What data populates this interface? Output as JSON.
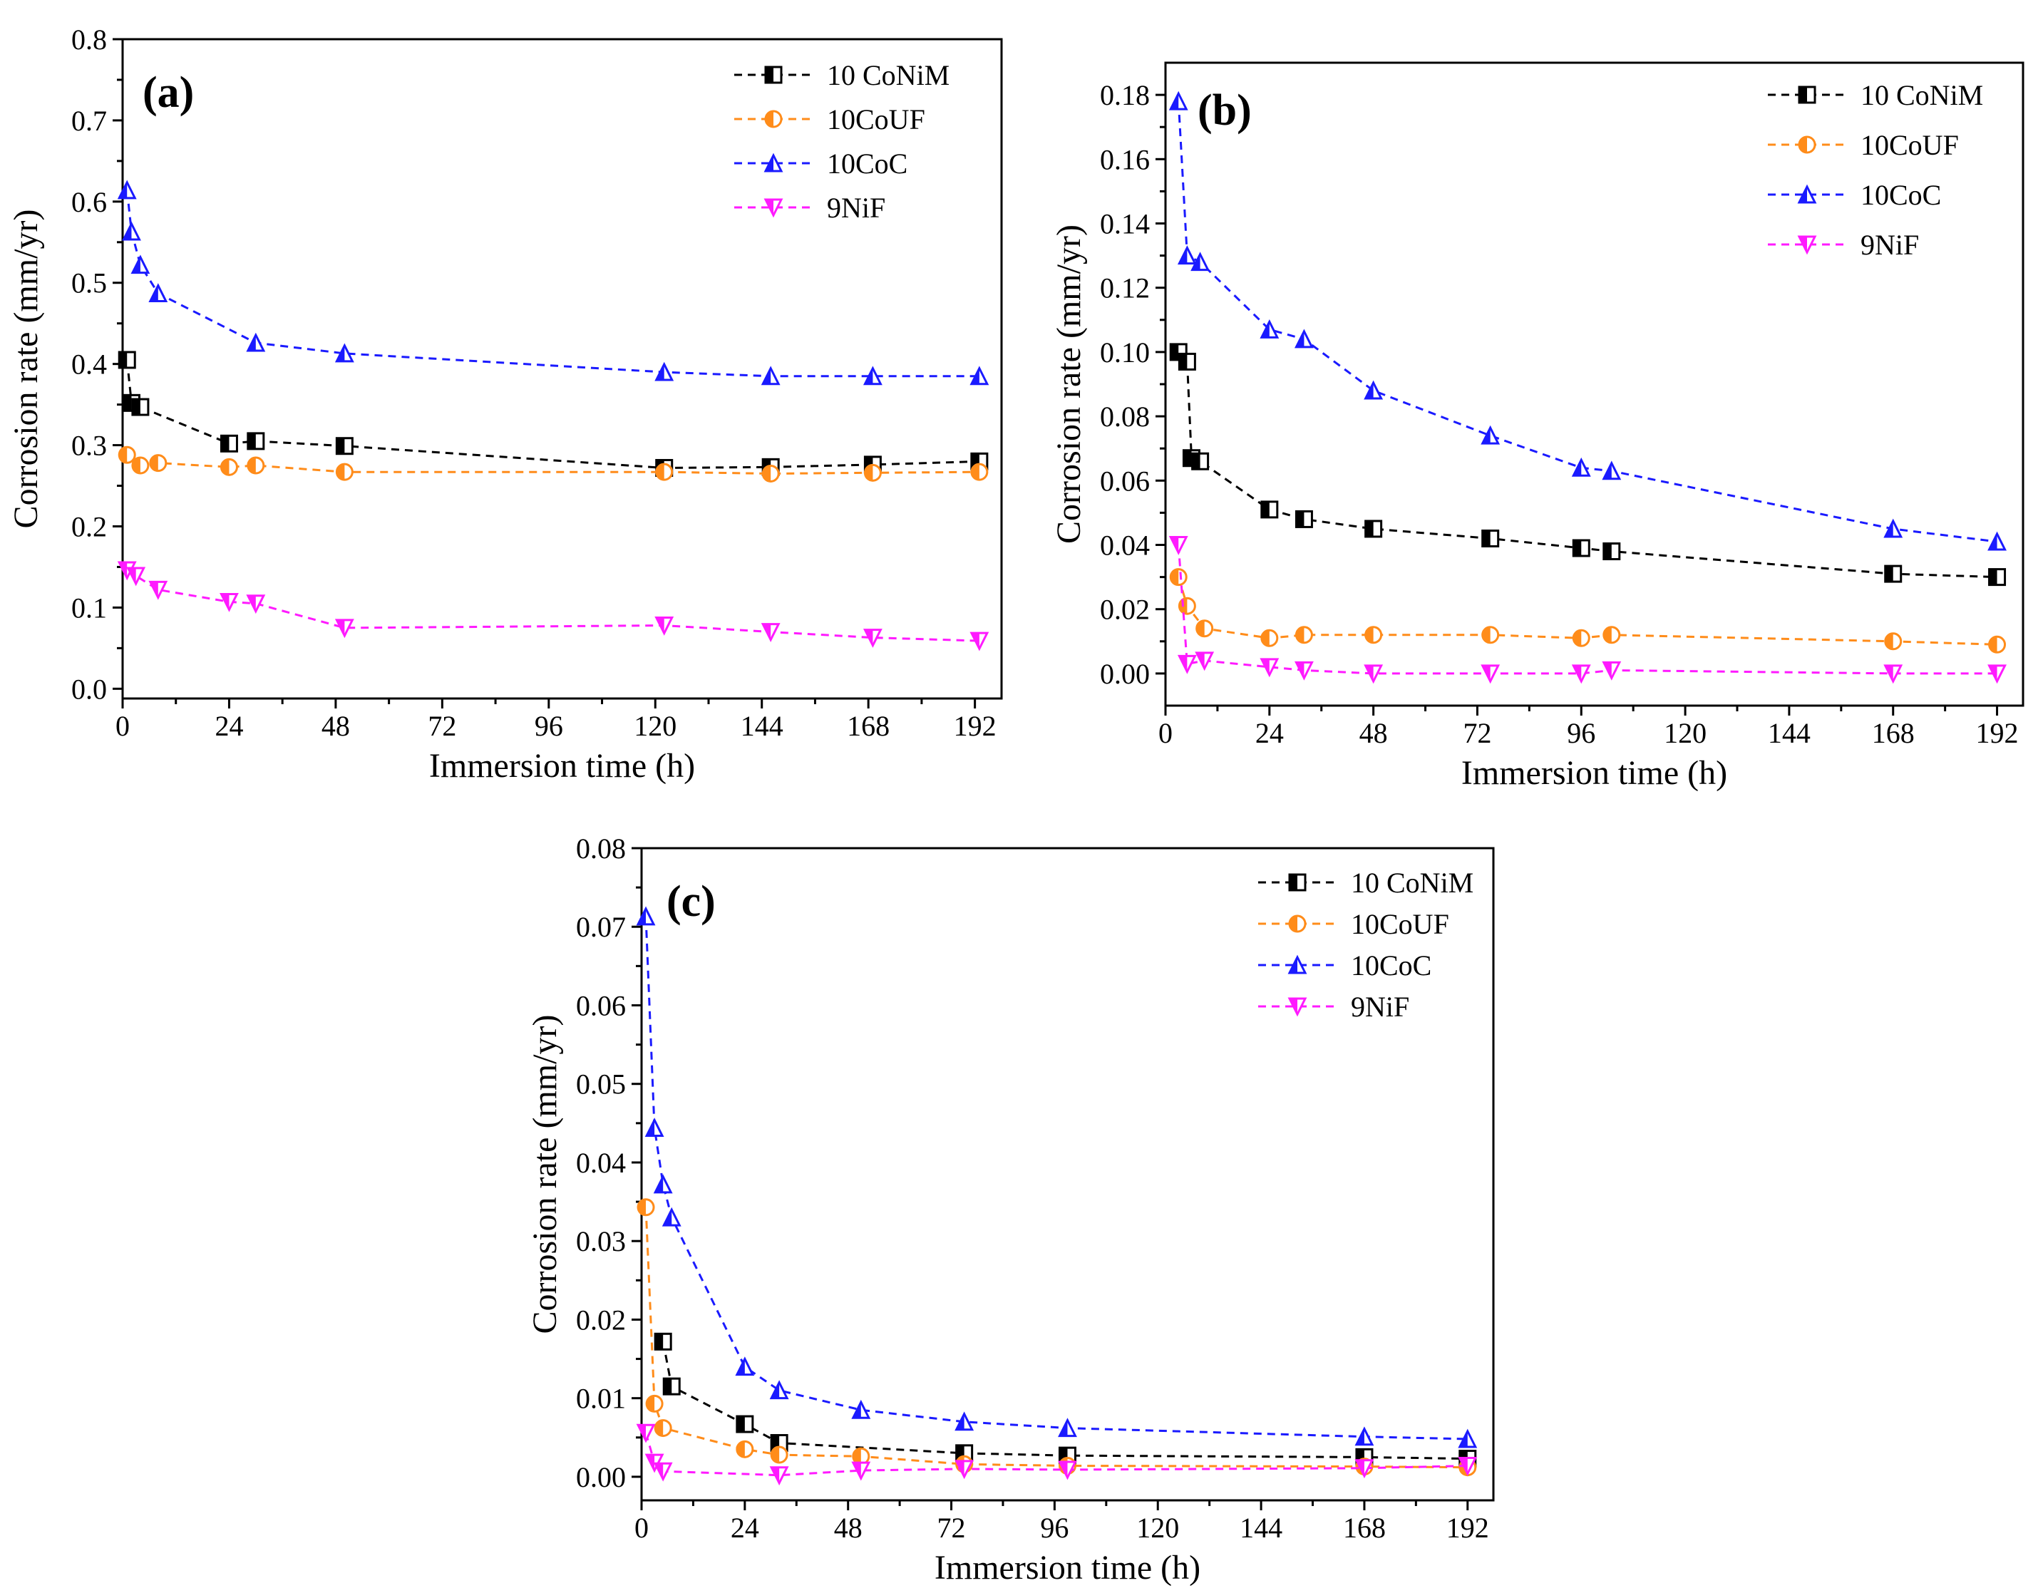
{
  "chart_data": [
    {
      "type": "line",
      "panel_label": "(a)",
      "xlabel": "Immersion time (h)",
      "ylabel": "Corrosion rate (mm/yr)",
      "xlim": [
        0,
        198
      ],
      "ylim": [
        -0.012,
        0.8
      ],
      "xticks": [
        0,
        24,
        48,
        72,
        96,
        120,
        144,
        168,
        192
      ],
      "xtick_labels": [
        "0",
        "24",
        "48",
        "72",
        "96",
        "120",
        "144",
        "168",
        "192"
      ],
      "yticks": [
        0,
        0.1,
        0.2,
        0.3,
        0.4,
        0.5,
        0.6,
        0.7,
        0.8
      ],
      "ytick_labels": [
        "0.0",
        "0.1",
        "0.2",
        "0.3",
        "0.4",
        "0.5",
        "0.6",
        "0.7",
        "0.8"
      ],
      "legend_position": "top-right",
      "series": [
        {
          "name": "10 CoNiM",
          "color": "#000000",
          "marker": "square-half",
          "x": [
            1,
            2,
            4,
            24,
            30,
            50,
            122,
            146,
            169,
            193
          ],
          "y": [
            0.405,
            0.352,
            0.347,
            0.302,
            0.305,
            0.299,
            0.272,
            0.273,
            0.276,
            0.28
          ]
        },
        {
          "name": "10CoUF",
          "color": "#ff8c1a",
          "marker": "circle-half",
          "x": [
            1,
            4,
            8,
            24,
            30,
            50,
            122,
            146,
            169,
            193
          ],
          "y": [
            0.288,
            0.275,
            0.278,
            0.273,
            0.275,
            0.267,
            0.267,
            0.265,
            0.266,
            0.267
          ]
        },
        {
          "name": "10CoC",
          "color": "#1a1aff",
          "marker": "triangle-up-half",
          "x": [
            1,
            2,
            4,
            8,
            30,
            50,
            122,
            146,
            169,
            193
          ],
          "y": [
            0.614,
            0.563,
            0.522,
            0.487,
            0.426,
            0.413,
            0.39,
            0.385,
            0.385,
            0.385
          ]
        },
        {
          "name": "9NiF",
          "color": "#ff1aff",
          "marker": "triangle-down-half",
          "x": [
            1,
            3,
            8,
            24,
            30,
            50,
            122,
            146,
            169,
            193
          ],
          "y": [
            0.146,
            0.139,
            0.122,
            0.107,
            0.105,
            0.075,
            0.078,
            0.07,
            0.063,
            0.059
          ]
        }
      ]
    },
    {
      "type": "line",
      "panel_label": "(b)",
      "xlabel": "Immersion time (h)",
      "ylabel": "Corrosion rate (mm/yr)",
      "xlim": [
        0,
        198
      ],
      "ylim": [
        -0.01,
        0.19
      ],
      "xticks": [
        0,
        24,
        48,
        72,
        96,
        120,
        144,
        168,
        192
      ],
      "xtick_labels": [
        "0",
        "24",
        "48",
        "72",
        "96",
        "120",
        "144",
        "168",
        "192"
      ],
      "yticks": [
        0,
        0.02,
        0.04,
        0.06,
        0.08,
        0.1,
        0.12,
        0.14,
        0.16,
        0.18
      ],
      "ytick_labels": [
        "0.00",
        "0.02",
        "0.04",
        "0.06",
        "0.08",
        "0.10",
        "0.12",
        "0.14",
        "0.16",
        "0.18"
      ],
      "legend_position": "top-right",
      "series": [
        {
          "name": "10 CoNiM",
          "color": "#000000",
          "marker": "square-half",
          "x": [
            3,
            5,
            6,
            8,
            24,
            32,
            48,
            75,
            96,
            103,
            168,
            192
          ],
          "y": [
            0.1,
            0.097,
            0.067,
            0.066,
            0.051,
            0.048,
            0.045,
            0.042,
            0.039,
            0.038,
            0.031,
            0.03
          ]
        },
        {
          "name": "10CoUF",
          "color": "#ff8c1a",
          "marker": "circle-half",
          "x": [
            3,
            5,
            9,
            24,
            32,
            48,
            75,
            96,
            103,
            168,
            192
          ],
          "y": [
            0.03,
            0.021,
            0.014,
            0.011,
            0.012,
            0.012,
            0.012,
            0.011,
            0.012,
            0.01,
            0.009
          ]
        },
        {
          "name": "10CoC",
          "color": "#1a1aff",
          "marker": "triangle-up-half",
          "x": [
            3,
            5,
            8,
            24,
            32,
            48,
            75,
            96,
            103,
            168,
            192
          ],
          "y": [
            0.178,
            0.13,
            0.128,
            0.107,
            0.104,
            0.088,
            0.074,
            0.064,
            0.063,
            0.045,
            0.041
          ]
        },
        {
          "name": "9NiF",
          "color": "#ff1aff",
          "marker": "triangle-down-half",
          "x": [
            3,
            5,
            9,
            24,
            32,
            48,
            75,
            96,
            103,
            168,
            192
          ],
          "y": [
            0.04,
            0.003,
            0.004,
            0.002,
            0.001,
            0.0,
            0.0,
            0.0,
            0.001,
            0.0,
            0.0
          ]
        }
      ]
    },
    {
      "type": "line",
      "panel_label": "(c)",
      "xlabel": "Immersion time (h)",
      "ylabel": "Corrosion rate (mm/yr)",
      "xlim": [
        0,
        198
      ],
      "ylim": [
        -0.003,
        0.08
      ],
      "xticks": [
        0,
        24,
        48,
        72,
        96,
        120,
        144,
        168,
        192
      ],
      "xtick_labels": [
        "0",
        "24",
        "48",
        "72",
        "96",
        "120",
        "144",
        "168",
        "192"
      ],
      "yticks": [
        0,
        0.01,
        0.02,
        0.03,
        0.04,
        0.05,
        0.06,
        0.07,
        0.08
      ],
      "ytick_labels": [
        "0.00",
        "0.01",
        "0.02",
        "0.03",
        "0.04",
        "0.05",
        "0.06",
        "0.07",
        "0.08"
      ],
      "legend_position": "top-right",
      "series": [
        {
          "name": "10 CoNiM",
          "color": "#000000",
          "marker": "square-half",
          "x": [
            5,
            7,
            24,
            32,
            75,
            99,
            168,
            192
          ],
          "y": [
            0.0172,
            0.0115,
            0.0067,
            0.0043,
            0.003,
            0.0027,
            0.0025,
            0.0023
          ]
        },
        {
          "name": "10CoUF",
          "color": "#ff8c1a",
          "marker": "circle-half",
          "x": [
            1,
            3,
            5,
            24,
            32,
            51,
            75,
            99,
            168,
            192
          ],
          "y": [
            0.0343,
            0.0093,
            0.0062,
            0.0035,
            0.0028,
            0.0026,
            0.0016,
            0.0014,
            0.0013,
            0.0012
          ]
        },
        {
          "name": "10CoC",
          "color": "#1a1aff",
          "marker": "triangle-up-half",
          "x": [
            1,
            3,
            5,
            7,
            24,
            32,
            51,
            75,
            99,
            168,
            192
          ],
          "y": [
            0.0713,
            0.0444,
            0.0372,
            0.033,
            0.014,
            0.011,
            0.0085,
            0.007,
            0.0062,
            0.0051,
            0.0048
          ]
        },
        {
          "name": "9NiF",
          "color": "#ff1aff",
          "marker": "triangle-down-half",
          "x": [
            1,
            3,
            5,
            32,
            51,
            75,
            99,
            168,
            192
          ],
          "y": [
            0.0056,
            0.0018,
            0.0007,
            0.0002,
            0.0008,
            0.001,
            0.0009,
            0.0011,
            0.0014
          ]
        }
      ]
    }
  ]
}
